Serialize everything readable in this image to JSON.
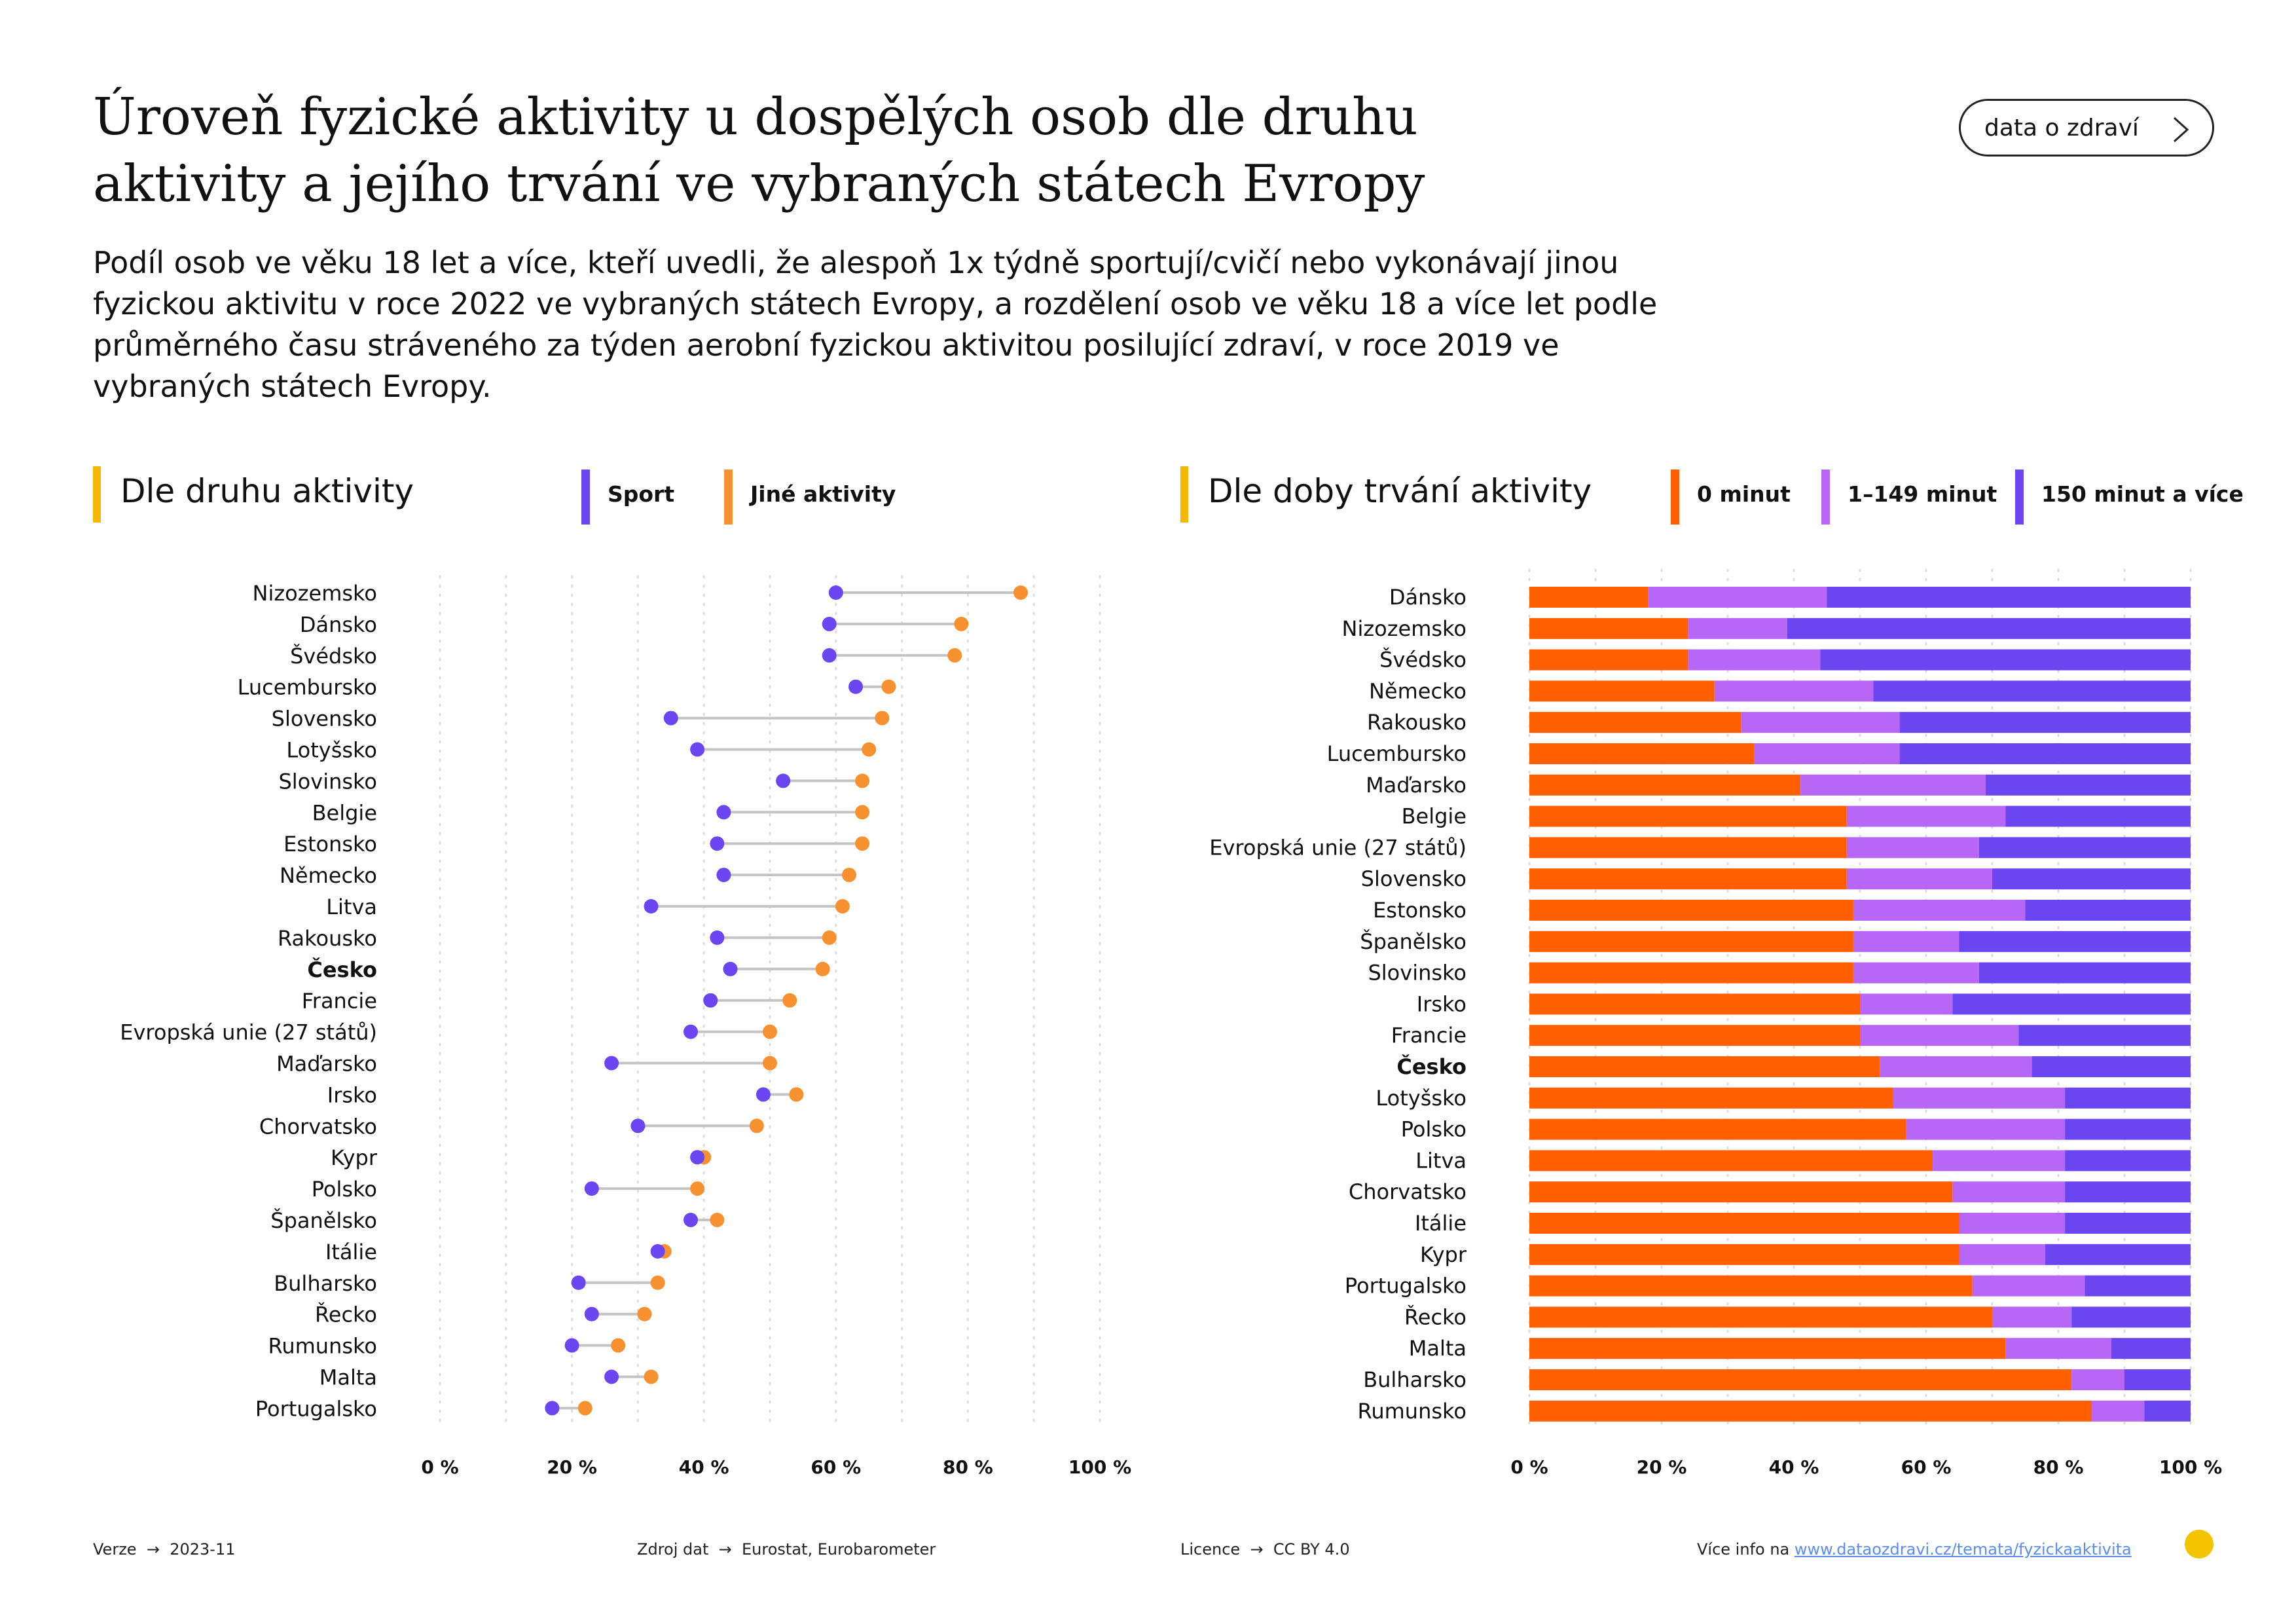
{
  "header": {
    "title": "Úroveň fyzické aktivity u dospělých osob dle druhu aktivity a jejího trvání ve vybraných státech Evropy",
    "subtitle": "Podíl osob ve věku 18 let a více, kteří uvedli, že alespoň 1x týdně sportují/cvičí nebo vykonávají jinou fyzickou aktivitu v roce 2022 ve vybraných státech Evropy, a rozdělení osob ve věku 18 a více let podle průměrného času stráveného za týden aerobní fyzickou aktivitou posilující zdraví, v roce 2019 ve vybraných státech Evropy.",
    "button_label": "data o zdraví"
  },
  "colors": {
    "accent": "#F5B800",
    "sport": "#6A45F0",
    "other": "#F7912F",
    "min0": "#FF5F00",
    "min1_149": "#B866F5",
    "min150": "#6A45F0",
    "connector": "#C4C4C4"
  },
  "chart_data": [
    {
      "type": "dumbbell",
      "title": "Dle druhu aktivity",
      "legend": [
        "Sport",
        "Jiné aktivity"
      ],
      "xlim": [
        0,
        100
      ],
      "xticks": [
        "0 %",
        "20 %",
        "40 %",
        "60 %",
        "80 %",
        "100 %"
      ],
      "highlight": "Česko",
      "categories": [
        "Nizozemsko",
        "Dánsko",
        "Švédsko",
        "Lucembursko",
        "Slovensko",
        "Lotyšsko",
        "Slovinsko",
        "Belgie",
        "Estonsko",
        "Německo",
        "Litva",
        "Rakousko",
        "Česko",
        "Francie",
        "Evropská unie (27 států)",
        "Maďarsko",
        "Irsko",
        "Chorvatsko",
        "Kypr",
        "Polsko",
        "Španělsko",
        "Itálie",
        "Bulharsko",
        "Řecko",
        "Rumunsko",
        "Malta",
        "Portugalsko"
      ],
      "series": [
        {
          "name": "Sport",
          "values": [
            60,
            59,
            59,
            63,
            35,
            39,
            52,
            43,
            42,
            43,
            32,
            42,
            44,
            41,
            38,
            26,
            49,
            30,
            39,
            23,
            38,
            33,
            21,
            23,
            20,
            26,
            17
          ]
        },
        {
          "name": "Jiné aktivity",
          "values": [
            88,
            79,
            78,
            68,
            67,
            65,
            64,
            64,
            64,
            62,
            61,
            59,
            58,
            53,
            50,
            50,
            54,
            48,
            40,
            39,
            42,
            34,
            33,
            31,
            27,
            32,
            22
          ]
        }
      ]
    },
    {
      "type": "bar",
      "stacked": true,
      "orientation": "horizontal",
      "title": "Dle doby trvání aktivity",
      "legend": [
        "0 minut",
        "1–149 minut",
        "150 minut a více"
      ],
      "xlim": [
        0,
        100
      ],
      "xticks": [
        "0 %",
        "20 %",
        "40 %",
        "60 %",
        "80 %",
        "100 %"
      ],
      "highlight": "Česko",
      "categories": [
        "Dánsko",
        "Nizozemsko",
        "Švédsko",
        "Německo",
        "Rakousko",
        "Lucembursko",
        "Maďarsko",
        "Belgie",
        "Evropská unie (27 států)",
        "Slovensko",
        "Estonsko",
        "Španělsko",
        "Slovinsko",
        "Irsko",
        "Francie",
        "Česko",
        "Lotyšsko",
        "Polsko",
        "Litva",
        "Chorvatsko",
        "Itálie",
        "Kypr",
        "Portugalsko",
        "Řecko",
        "Malta",
        "Bulharsko",
        "Rumunsko"
      ],
      "series": [
        {
          "name": "0 minut",
          "values": [
            18,
            24,
            24,
            28,
            32,
            34,
            41,
            48,
            48,
            48,
            49,
            49,
            49,
            50,
            50,
            53,
            55,
            57,
            61,
            64,
            65,
            65,
            67,
            70,
            72,
            82,
            85
          ]
        },
        {
          "name": "1–149 minut",
          "values": [
            27,
            15,
            20,
            24,
            24,
            22,
            28,
            24,
            20,
            22,
            26,
            16,
            19,
            14,
            24,
            23,
            26,
            24,
            20,
            17,
            16,
            13,
            17,
            12,
            16,
            8,
            8
          ]
        },
        {
          "name": "150 minut a více",
          "values": [
            55,
            61,
            56,
            48,
            44,
            44,
            31,
            28,
            32,
            30,
            25,
            35,
            32,
            36,
            26,
            24,
            19,
            19,
            19,
            19,
            19,
            22,
            16,
            18,
            12,
            10,
            7
          ]
        }
      ]
    }
  ],
  "footer": {
    "version_label": "Verze",
    "version_value": "2023-11",
    "source_label": "Zdroj dat",
    "source_value": "Eurostat, Eurobarometer",
    "license_label": "Licence",
    "license_value": "CC BY 4.0",
    "more_label": "Více info na",
    "more_link": "www.dataozdravi.cz/temata/fyzickaaktivita"
  }
}
